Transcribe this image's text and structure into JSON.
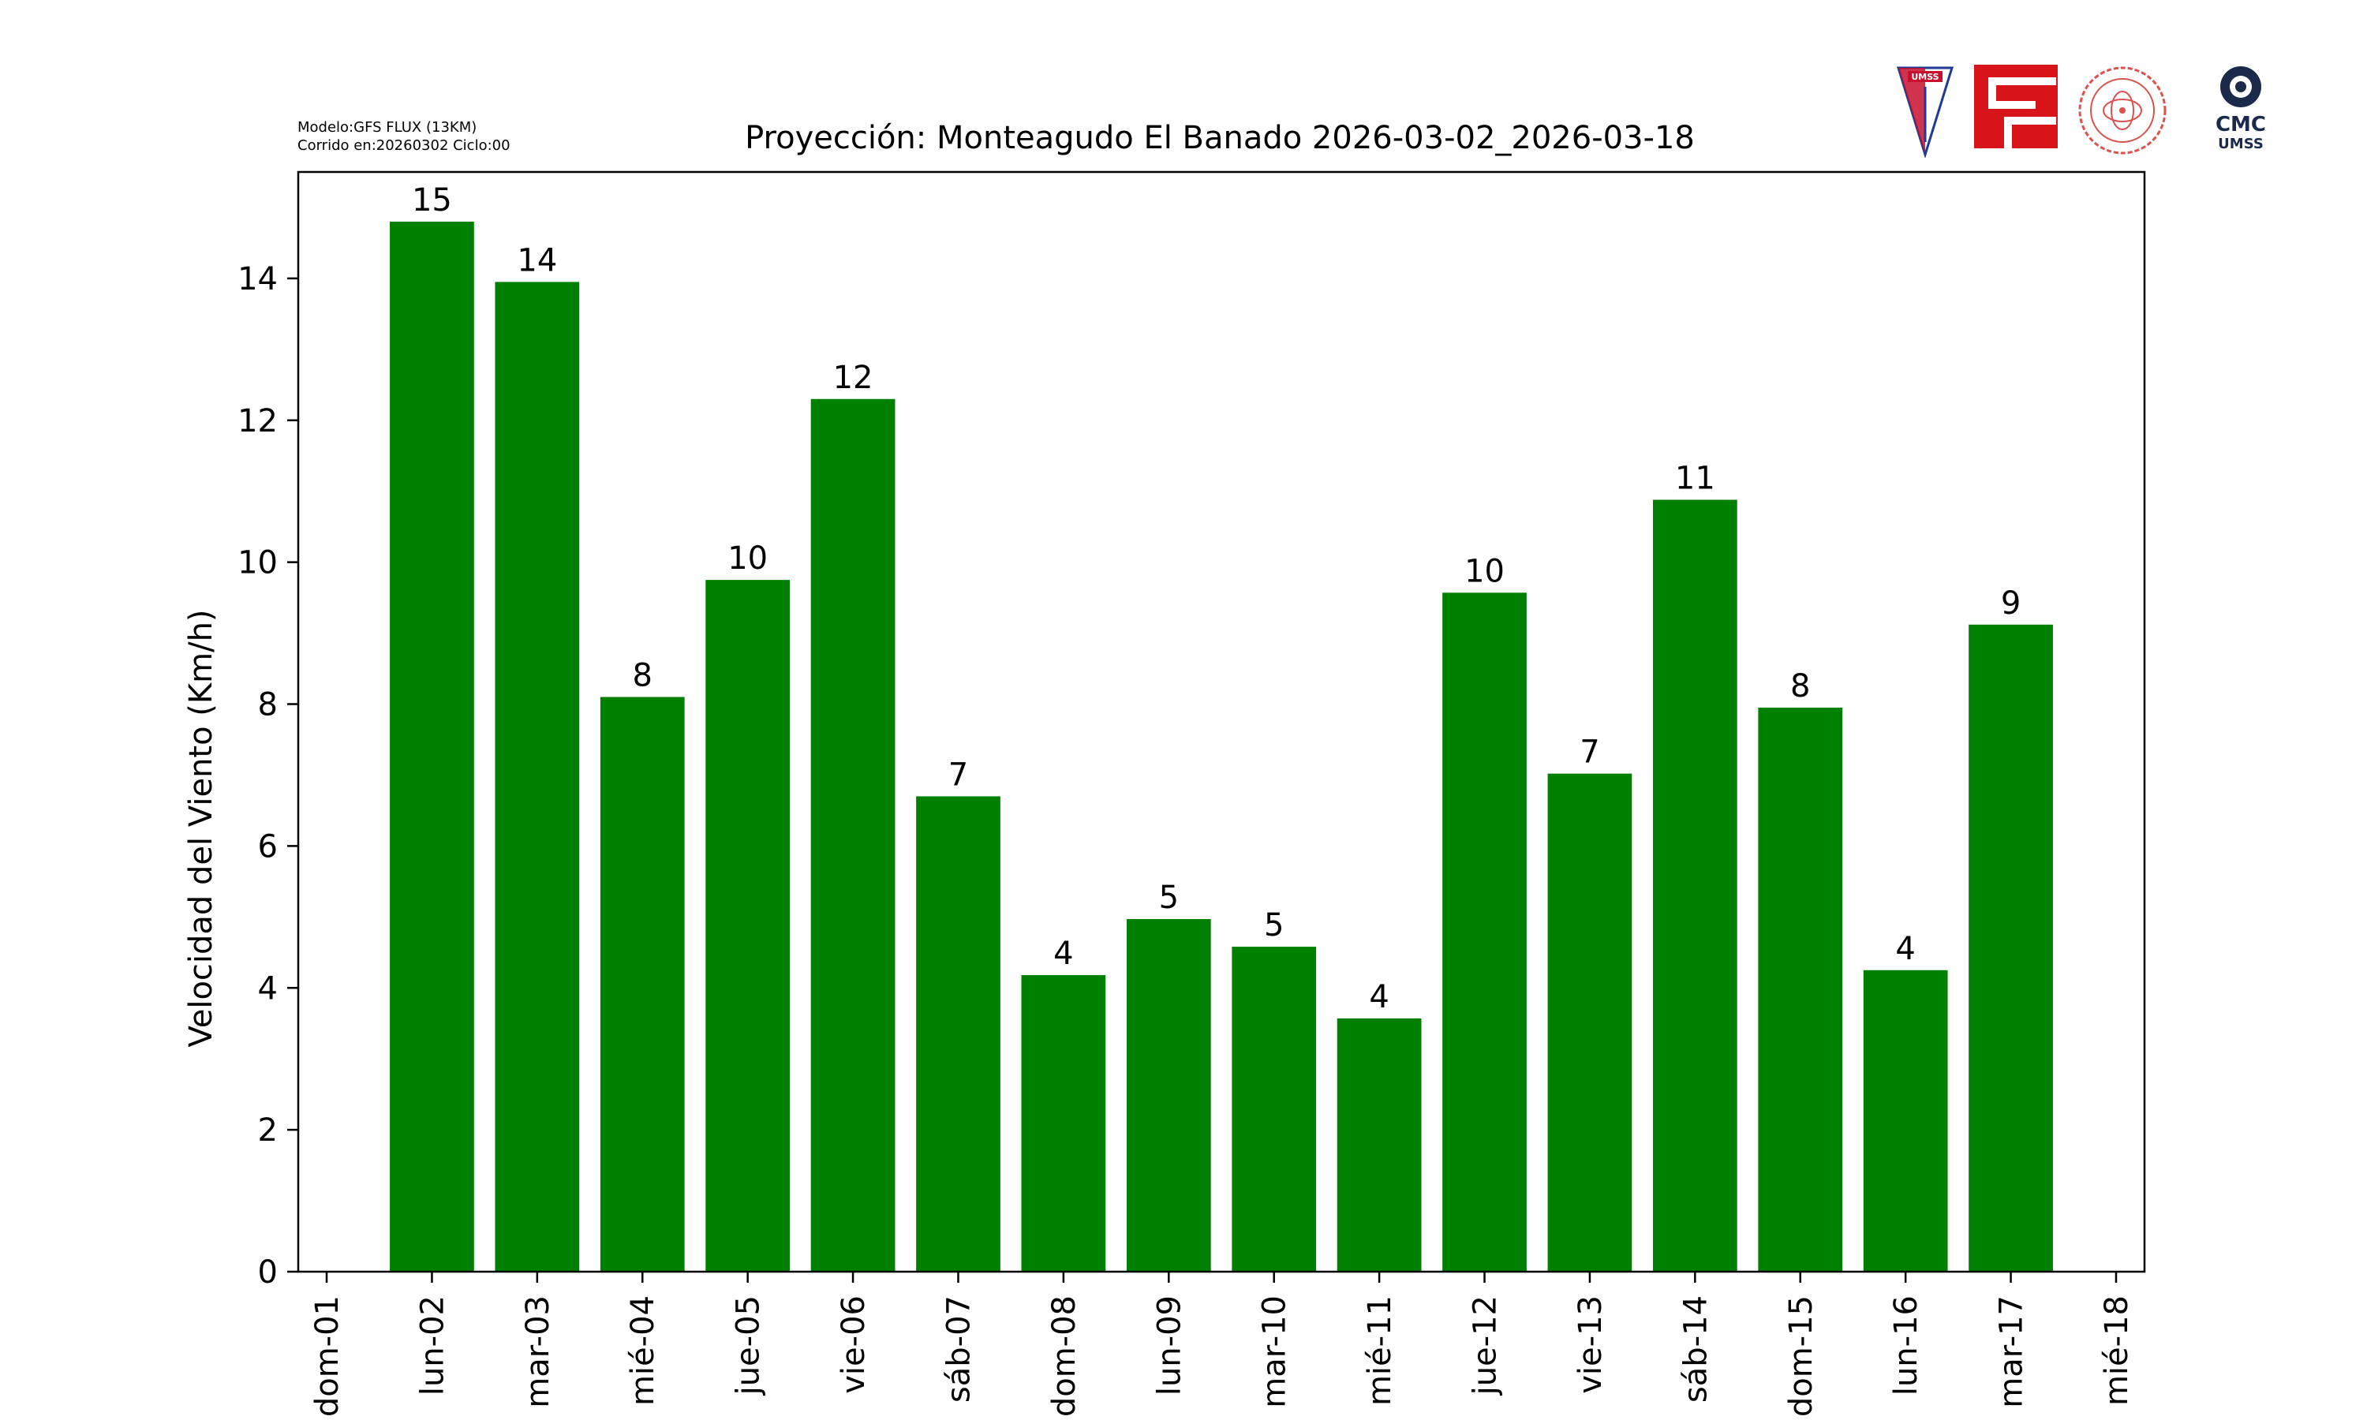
{
  "header": {
    "model_line": "Modelo:GFS FLUX (13KM)",
    "run_line": "Corrido en:20260302 Ciclo:00"
  },
  "logos": {
    "umss_shield_text": "UMSS",
    "cmc_text": "CMC",
    "cmc_sub_text": "UMSS"
  },
  "colors": {
    "bar": "#008000",
    "axis": "#000000",
    "umss_red": "#c8102e",
    "umss_blue": "#1f3a93",
    "fcyt_red": "#d7141a",
    "seal_red": "#d9534f",
    "cmc_navy": "#1b2a4a"
  },
  "chart_data": {
    "type": "bar",
    "title": "Proyección: Monteagudo El Banado  2026-03-02_2026-03-18",
    "xlabel": "",
    "ylabel": "Velocidad del Viento (Km/h)",
    "x_ticks": [
      "dom-01",
      "lun-02",
      "mar-03",
      "mié-04",
      "jue-05",
      "vie-06",
      "sáb-07",
      "dom-08",
      "lun-09",
      "mar-10",
      "mié-11",
      "jue-12",
      "vie-13",
      "sáb-14",
      "dom-15",
      "lun-16",
      "mar-17",
      "mié-18"
    ],
    "categories": [
      "lun-02",
      "mar-03",
      "mié-04",
      "jue-05",
      "vie-06",
      "sáb-07",
      "dom-08",
      "lun-09",
      "mar-10",
      "mié-11",
      "jue-12",
      "vie-13",
      "sáb-14",
      "dom-15",
      "lun-16",
      "mar-17"
    ],
    "values": [
      14.8,
      13.95,
      8.1,
      9.75,
      12.3,
      6.7,
      4.18,
      4.97,
      4.58,
      3.57,
      9.57,
      7.02,
      10.88,
      7.95,
      4.25,
      9.12
    ],
    "data_labels": [
      "15",
      "14",
      "8",
      "10",
      "12",
      "7",
      "4",
      "5",
      "5",
      "4",
      "10",
      "7",
      "11",
      "8",
      "4",
      "9"
    ],
    "ylim": [
      0,
      15.5
    ],
    "y_ticks": [
      0,
      2,
      4,
      6,
      8,
      10,
      12,
      14
    ],
    "grid": false,
    "legend": "none"
  }
}
